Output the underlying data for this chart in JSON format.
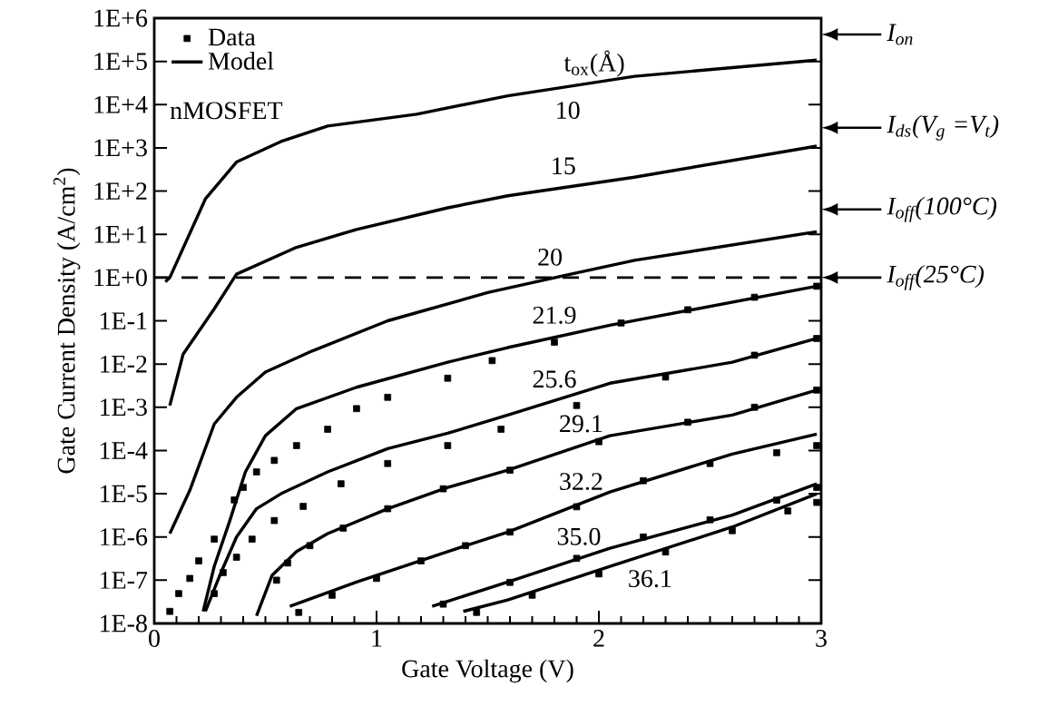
{
  "chart_data": {
    "type": "line",
    "xlabel": "Gate Voltage (V)",
    "ylabel": "Gate Current Density (A/cm$^{2}$)",
    "xlim": [
      0,
      3
    ],
    "xticks": [
      0,
      1,
      2,
      3
    ],
    "ylim": [
      1e-08,
      1000000.0
    ],
    "log": "y",
    "yticks": [
      {
        "value": 1000000.0,
        "label": "1E+6"
      },
      {
        "value": 100000.0,
        "label": "1E+5"
      },
      {
        "value": 10000.0,
        "label": "1E+4"
      },
      {
        "value": 1000.0,
        "label": "1E+3"
      },
      {
        "value": 100.0,
        "label": "1E+2"
      },
      {
        "value": 10.0,
        "label": "1E+1"
      },
      {
        "value": 1,
        "label": "1E+0"
      },
      {
        "value": 0.1,
        "label": "1E-1"
      },
      {
        "value": 0.01,
        "label": "1E-2"
      },
      {
        "value": 0.001,
        "label": "1E-3"
      },
      {
        "value": 0.0001,
        "label": "1E-4"
      },
      {
        "value": 1e-05,
        "label": "1E-5"
      },
      {
        "value": 1e-06,
        "label": "1E-6"
      },
      {
        "value": 1e-07,
        "label": "1E-7"
      },
      {
        "value": 1e-08,
        "label": "1E-8"
      }
    ],
    "legend": "top left",
    "series": [
      {
        "name": "Data",
        "type": "scatter",
        "marker": "square",
        "color": "#000000",
        "x": [
          0.07,
          0.11,
          0.16,
          0.2,
          0.27,
          0.36,
          0.4,
          0.46,
          0.54,
          0.64,
          0.78,
          0.91,
          1.05,
          1.32,
          1.52,
          1.8,
          2.1,
          2.4,
          2.7,
          2.98
        ],
        "values": [
          1.9e-08,
          4.9e-08,
          1.1e-07,
          2.8e-07,
          8.9e-07,
          7.2e-06,
          1.4e-05,
          3.2e-05,
          5.9e-05,
          0.00013,
          0.00031,
          0.00093,
          0.0017,
          0.0047,
          0.012,
          0.032,
          0.089,
          0.18,
          0.35,
          0.63
        ]
      },
      {
        "name": "Model",
        "marker": "none",
        "color": "#000000",
        "x": [
          0.05,
          0.07,
          0.23,
          0.37,
          0.57,
          0.78,
          1.18,
          1.59,
          2.16,
          2.98
        ],
        "values": [
          0.8,
          1,
          66,
          470,
          1400,
          3200,
          6000,
          16000,
          45000,
          107000
        ]
      },
      {
        "marker": "none",
        "color": "#000000",
        "x": [
          0.07,
          0.13,
          0.27,
          0.37,
          0.64,
          0.91,
          1.32,
          1.59,
          2.16,
          2.98
        ],
        "values": [
          0.0011,
          0.017,
          0.19,
          1.2,
          5,
          13,
          41,
          78,
          210,
          1100
        ]
      },
      {
        "marker": "none",
        "color": "#000000",
        "x": [
          0.07,
          0.16,
          0.27,
          0.37,
          0.5,
          0.71,
          1.05,
          1.5,
          1.84,
          2.16,
          2.98
        ],
        "values": [
          1.2e-06,
          1.2e-05,
          0.00041,
          0.0017,
          0.0065,
          0.02,
          0.1,
          0.45,
          1.1,
          2.5,
          11.5
        ]
      },
      {
        "marker": "none",
        "color": "#000000",
        "x": [
          0.22,
          0.27,
          0.34,
          0.41,
          0.5,
          0.64,
          0.91,
          1.32,
          1.59,
          2.05,
          2.98
        ],
        "values": [
          1.9e-08,
          2.1e-07,
          2.4e-06,
          3.2e-05,
          0.00022,
          0.00093,
          0.0029,
          0.011,
          0.024,
          0.079,
          0.63
        ]
      },
      {
        "marker": "none",
        "color": "#000000",
        "x": [
          0.23,
          0.3,
          0.37,
          0.46,
          0.57,
          0.78,
          1.05,
          1.32,
          1.59,
          2.05,
          2.6,
          2.98
        ],
        "values": [
          1.9e-08,
          1.5e-07,
          1e-06,
          4.5e-06,
          1e-05,
          3.2e-05,
          0.00011,
          0.00025,
          0.00066,
          0.0036,
          0.011,
          0.039
        ]
      },
      {
        "type": "scatter",
        "marker": "square",
        "color": "#000000",
        "x": [
          0.27,
          0.31,
          0.37,
          0.44,
          0.54,
          0.67,
          0.84,
          1.05,
          1.32,
          1.56,
          1.9,
          2.3,
          2.7,
          2.98
        ],
        "values": [
          4.9e-08,
          1.5e-07,
          3.4e-07,
          8.9e-07,
          2.4e-06,
          5.1e-06,
          1.7e-05,
          5e-05,
          0.00013,
          0.00031,
          0.0011,
          0.005,
          0.016,
          0.039
        ]
      },
      {
        "marker": "none",
        "color": "#000000",
        "x": [
          0.46,
          0.53,
          0.64,
          0.78,
          1.05,
          1.32,
          1.59,
          2.05,
          2.6,
          2.98
        ],
        "values": [
          1.5e-08,
          1.3e-07,
          4.6e-07,
          1.2e-06,
          4.5e-06,
          1.4e-05,
          3.5e-05,
          0.00022,
          0.00066,
          0.0025
        ]
      },
      {
        "type": "scatter",
        "marker": "square",
        "color": "#000000",
        "x": [
          0.55,
          0.6,
          0.7,
          0.85,
          1.05,
          1.3,
          1.6,
          2.0,
          2.4,
          2.7,
          2.98
        ],
        "values": [
          1e-07,
          2.5e-07,
          6.3e-07,
          1.6e-06,
          4.5e-06,
          1.3e-05,
          3.5e-05,
          0.00016,
          0.00045,
          0.001,
          0.0025
        ]
      },
      {
        "marker": "none",
        "color": "#000000",
        "x": [
          0.61,
          0.91,
          1.32,
          1.59,
          2.05,
          2.6,
          2.98
        ],
        "values": [
          2.5e-08,
          9.1e-08,
          4.6e-07,
          1.3e-06,
          1.1e-05,
          8.3e-05,
          0.00024
        ]
      },
      {
        "type": "scatter",
        "marker": "square",
        "color": "#000000",
        "x": [
          0.65,
          0.8,
          1.0,
          1.2,
          1.4,
          1.6,
          1.9,
          2.2,
          2.5,
          2.8,
          2.98
        ],
        "values": [
          1.8e-08,
          4.5e-08,
          1.1e-07,
          2.8e-07,
          6.3e-07,
          1.3e-06,
          5e-06,
          2e-05,
          5e-05,
          8.9e-05,
          0.00013
        ]
      },
      {
        "marker": "none",
        "color": "#000000",
        "x": [
          1.25,
          1.59,
          2.05,
          2.6,
          2.98
        ],
        "values": [
          2.5e-08,
          9.1e-08,
          5.5e-07,
          3.2e-06,
          1.7e-05
        ]
      },
      {
        "type": "scatter",
        "marker": "square",
        "color": "#000000",
        "x": [
          1.3,
          1.6,
          1.9,
          2.2,
          2.5,
          2.8,
          2.98
        ],
        "values": [
          2.8e-08,
          8.9e-08,
          3.2e-07,
          1e-06,
          2.5e-06,
          7.1e-06,
          1.4e-05
        ]
      },
      {
        "marker": "none",
        "color": "#000000",
        "x": [
          1.39,
          1.59,
          2.05,
          2.6,
          2.98
        ],
        "values": [
          1.9e-08,
          3.5e-08,
          2.1e-07,
          1.7e-06,
          1e-05
        ]
      },
      {
        "type": "scatter",
        "marker": "square",
        "color": "#000000",
        "x": [
          1.45,
          1.7,
          2.0,
          2.3,
          2.6,
          2.85,
          2.98
        ],
        "values": [
          1.8e-08,
          4.5e-08,
          1.4e-07,
          4.5e-07,
          1.4e-06,
          4e-06,
          6.3e-06
        ]
      }
    ],
    "ref_lines": [
      {
        "axis": "y",
        "value": 1,
        "line_style": "dashed",
        "color": "#000000"
      }
    ],
    "annotations": [
      "nMOSFET",
      "t$_{ox}$(Å)",
      "I$_{on}$",
      "I$_{ds}$(V$_{g}$ =V$_{t}$)",
      "I$_{off}$(100°C)",
      {
        "text": "10",
        "x": 1.86,
        "y": 26000
      },
      {
        "text": "15",
        "x": 1.84,
        "y": 120
      },
      {
        "text": "20",
        "x": 1.78,
        "y": 0.93
      },
      {
        "text": "21.9",
        "x": 1.8,
        "y": 0.042
      },
      {
        "text": "25.6",
        "x": 1.8,
        "y": 0.0014
      },
      {
        "text": "29.1",
        "x": 1.92,
        "y": 0.00013
      },
      {
        "text": "32.2",
        "x": 1.92,
        "y": 6e-06
      },
      {
        "text": "35.0",
        "x": 1.91,
        "y": 3.2e-07
      },
      {
        "text": "36.1",
        "x": 2.23,
        "y": 4.2e-07
      },
      {
        "text": "I$_{off}$(25°C)",
        "x": 3,
        "y": 1
      }
    ]
  }
}
